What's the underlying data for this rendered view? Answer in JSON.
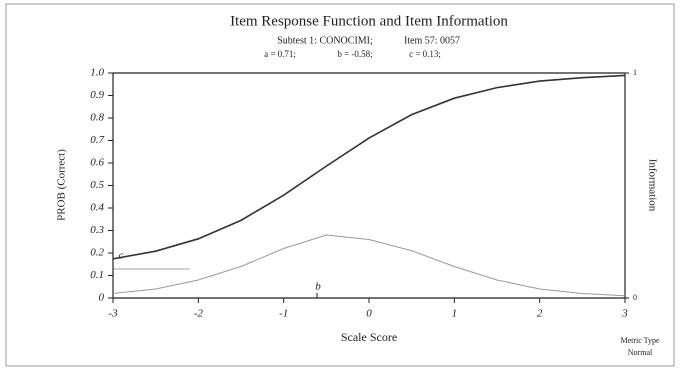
{
  "chart_data": {
    "type": "line",
    "title": "Item Response Function and Item Information",
    "subtest": "Subtest 1: CONOCIMI;",
    "item": "Item 57: 0057",
    "params": [
      "a = 0.71;",
      "b = -0.58;",
      "c = 0.13;"
    ],
    "x_label": "Scale Score",
    "y_label": "PROB (Correct)",
    "y2_label": "Information",
    "metric": [
      "Metric Type",
      "Normal"
    ],
    "annotations": [
      "c",
      "b"
    ],
    "x": [
      -3,
      -2.5,
      -2,
      -1.5,
      -1,
      -0.5,
      0,
      0.5,
      1,
      1.5,
      2,
      2.5,
      3
    ],
    "series": [
      {
        "name": "Item Response Function",
        "color": "#333333",
        "values": [
          0.174,
          0.208,
          0.263,
          0.345,
          0.457,
          0.586,
          0.711,
          0.815,
          0.888,
          0.935,
          0.964,
          0.979,
          0.989
        ]
      },
      {
        "name": "Item Information",
        "color": "#9a9a9a",
        "axis": "y2",
        "values": [
          0.02,
          0.04,
          0.08,
          0.14,
          0.22,
          0.28,
          0.26,
          0.21,
          0.14,
          0.08,
          0.04,
          0.02,
          0.01
        ]
      }
    ],
    "xlim": [
      -3,
      3
    ],
    "xticks": [
      -3,
      -2,
      -1,
      0,
      1,
      2,
      3
    ],
    "ylim": [
      0,
      1
    ],
    "yticks": [
      0,
      0.1,
      0.2,
      0.3,
      0.4,
      0.5,
      0.6,
      0.7,
      0.8,
      0.9,
      {
        "value": 1,
        "label": "1.0"
      }
    ],
    "y2lim": [
      0,
      1
    ],
    "y2ticks": [
      0,
      1
    ]
  }
}
